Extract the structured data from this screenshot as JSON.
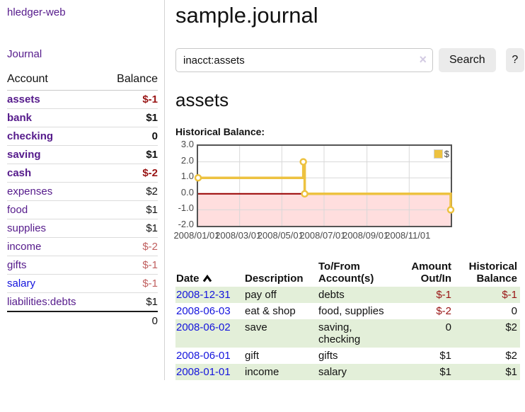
{
  "colors": {
    "link_purple": "#551a8b",
    "link_blue": "#1414dd",
    "negative_dark": "#991414",
    "negative_dim": "#c05f5f",
    "row_stripe_green": "#e3efd9",
    "chart_line_gold": "#edc240",
    "chart_negative_fill": "#ffdede",
    "chart_zero_line": "#990000",
    "chart_grid": "#d8d8d8",
    "chart_border": "#545454"
  },
  "sidebar": {
    "app_title": "hledger-web",
    "nav": {
      "journal": "Journal"
    },
    "accounts": {
      "headers": {
        "account": "Account",
        "balance": "Balance"
      },
      "rows": [
        {
          "name": "assets",
          "balance": "$-1"
        },
        {
          "name": "bank",
          "balance": "$1"
        },
        {
          "name": "checking",
          "balance": "0"
        },
        {
          "name": "saving",
          "balance": "$1"
        },
        {
          "name": "cash",
          "balance": "$-2"
        },
        {
          "name": "expenses",
          "balance": "$2"
        },
        {
          "name": "food",
          "balance": "$1"
        },
        {
          "name": "supplies",
          "balance": "$1"
        },
        {
          "name": "income",
          "balance": "$-2"
        },
        {
          "name": "gifts",
          "balance": "$-1"
        },
        {
          "name": "salary",
          "balance": "$-1"
        },
        {
          "name": "liabilities:debts",
          "balance": "$1"
        }
      ],
      "total": "0"
    }
  },
  "main": {
    "title": "sample.journal",
    "search": {
      "value": "inacct:assets",
      "clear_icon": "×",
      "search_button": "Search",
      "help_button": "?"
    },
    "account_heading": "assets",
    "section_label": "Historical Balance:"
  },
  "chart_data": {
    "type": "line",
    "step": true,
    "title": "Historical Balance",
    "legend": "$",
    "legend_position": "top-right",
    "grid": true,
    "ylim": [
      -2,
      3
    ],
    "ytick_values": [
      3,
      2,
      1,
      0,
      -1,
      -2
    ],
    "yticks": [
      "3.0",
      "2.0",
      "1.0",
      "0.0",
      "-1.0",
      "-2.0"
    ],
    "x_start": "2008-01-01",
    "x_end": "2008-12-31",
    "xticks": [
      {
        "label": "2008/01/01",
        "date": "2008-01-01"
      },
      {
        "label": "2008/03/01",
        "date": "2008-03-01"
      },
      {
        "label": "2008/05/01",
        "date": "2008-05-01"
      },
      {
        "label": "2008/07/01",
        "date": "2008-07-01"
      },
      {
        "label": "2008/09/01",
        "date": "2008-09-01"
      },
      {
        "label": "2008/11/01",
        "date": "2008-11-01"
      }
    ],
    "series": [
      {
        "name": "$",
        "color": "#edc240",
        "points": [
          [
            "2008-01-01",
            1
          ],
          [
            "2008-06-01",
            2
          ],
          [
            "2008-06-03",
            0
          ],
          [
            "2008-12-31",
            -1
          ]
        ]
      }
    ]
  },
  "register": {
    "headers": {
      "date": "Date",
      "description": "Description",
      "accounts": "To/From Account(s)",
      "amount": "Amount Out/In",
      "balance": "Historical Balance"
    },
    "rows": [
      {
        "date": "2008-12-31",
        "description": "pay off",
        "accounts": "debts",
        "amount": "$-1",
        "balance": "$-1"
      },
      {
        "date": "2008-06-03",
        "description": "eat & shop",
        "accounts": "food, supplies",
        "amount": "$-2",
        "balance": "0"
      },
      {
        "date": "2008-06-02",
        "description": "save",
        "accounts": "saving, checking",
        "amount": "0",
        "balance": "$2"
      },
      {
        "date": "2008-06-01",
        "description": "gift",
        "accounts": "gifts",
        "amount": "$1",
        "balance": "$2"
      },
      {
        "date": "2008-01-01",
        "description": "income",
        "accounts": "salary",
        "amount": "$1",
        "balance": "$1"
      }
    ]
  }
}
